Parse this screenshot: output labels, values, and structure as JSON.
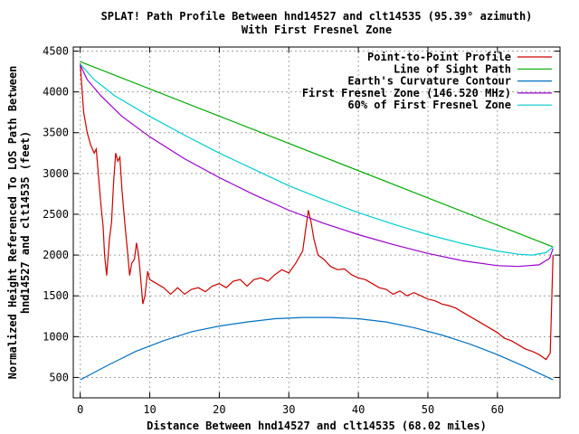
{
  "chart_data": {
    "type": "line",
    "title": "SPLAT! Path Profile Between hnd14527 and clt14535 (95.39° azimuth)",
    "subtitle": "With First Fresnel Zone",
    "xlabel": "Distance Between hnd14527 and clt14535 (68.02 miles)",
    "ylabel_lines": [
      "Normalized Height Referenced To LOS Path Between",
      "hnd14527 and clt14535 (feet)"
    ],
    "xlim": [
      -1,
      69
    ],
    "ylim": [
      250,
      4550
    ],
    "x_ticks": [
      0,
      10,
      20,
      30,
      40,
      50,
      60
    ],
    "y_ticks": [
      500,
      1000,
      1500,
      2000,
      2500,
      3000,
      3500,
      4000,
      4500
    ],
    "x_tick_labels": [
      "0",
      "10",
      "20",
      "30",
      "40",
      "50",
      "60"
    ],
    "y_tick_labels": [
      "500",
      "1000",
      "1500",
      "2000",
      "2500",
      "3000",
      "3500",
      "4000",
      "4500"
    ],
    "grid": true,
    "legend_position": "top-right",
    "series": [
      {
        "name": "Point-to-Point Profile",
        "color": "#cc0000",
        "points": [
          [
            0,
            4350
          ],
          [
            0.2,
            4100
          ],
          [
            0.5,
            3750
          ],
          [
            1,
            3500
          ],
          [
            1.5,
            3350
          ],
          [
            2,
            3250
          ],
          [
            2.3,
            3300
          ],
          [
            2.7,
            2900
          ],
          [
            3,
            2600
          ],
          [
            3.3,
            2350
          ],
          [
            3.5,
            2000
          ],
          [
            3.8,
            1750
          ],
          [
            4.2,
            2200
          ],
          [
            4.5,
            2400
          ],
          [
            4.8,
            2900
          ],
          [
            5.1,
            3250
          ],
          [
            5.4,
            3150
          ],
          [
            5.7,
            3200
          ],
          [
            6,
            2800
          ],
          [
            6.4,
            2400
          ],
          [
            6.8,
            2050
          ],
          [
            7.1,
            1750
          ],
          [
            7.4,
            1900
          ],
          [
            7.8,
            1950
          ],
          [
            8.1,
            2150
          ],
          [
            8.4,
            2000
          ],
          [
            8.7,
            1700
          ],
          [
            9,
            1400
          ],
          [
            9.3,
            1500
          ],
          [
            9.7,
            1800
          ],
          [
            10,
            1700
          ],
          [
            11,
            1650
          ],
          [
            12,
            1600
          ],
          [
            13,
            1520
          ],
          [
            14,
            1600
          ],
          [
            15,
            1520
          ],
          [
            16,
            1580
          ],
          [
            17,
            1600
          ],
          [
            18,
            1550
          ],
          [
            19,
            1620
          ],
          [
            20,
            1650
          ],
          [
            21,
            1600
          ],
          [
            22,
            1680
          ],
          [
            23,
            1700
          ],
          [
            24,
            1620
          ],
          [
            25,
            1700
          ],
          [
            26,
            1720
          ],
          [
            27,
            1680
          ],
          [
            28,
            1760
          ],
          [
            29,
            1820
          ],
          [
            30,
            1780
          ],
          [
            31,
            1900
          ],
          [
            32,
            2050
          ],
          [
            32.8,
            2550
          ],
          [
            33.2,
            2400
          ],
          [
            33.6,
            2200
          ],
          [
            34.2,
            2000
          ],
          [
            35,
            1950
          ],
          [
            36,
            1860
          ],
          [
            37,
            1820
          ],
          [
            38,
            1830
          ],
          [
            39,
            1760
          ],
          [
            40,
            1720
          ],
          [
            41,
            1700
          ],
          [
            42,
            1650
          ],
          [
            43,
            1600
          ],
          [
            44,
            1580
          ],
          [
            45,
            1520
          ],
          [
            46,
            1560
          ],
          [
            47,
            1500
          ],
          [
            48,
            1540
          ],
          [
            49,
            1500
          ],
          [
            50,
            1460
          ],
          [
            51,
            1440
          ],
          [
            52,
            1400
          ],
          [
            53,
            1380
          ],
          [
            54,
            1350
          ],
          [
            55,
            1300
          ],
          [
            56,
            1250
          ],
          [
            57,
            1200
          ],
          [
            58,
            1150
          ],
          [
            59,
            1100
          ],
          [
            60,
            1050
          ],
          [
            61,
            980
          ],
          [
            62,
            950
          ],
          [
            63,
            900
          ],
          [
            64,
            850
          ],
          [
            65,
            820
          ],
          [
            66,
            780
          ],
          [
            67,
            720
          ],
          [
            67.6,
            800
          ],
          [
            68,
            2000
          ]
        ]
      },
      {
        "name": "Line of Sight Path",
        "color": "#00aa00",
        "points": [
          [
            0,
            4370
          ],
          [
            68,
            2100
          ]
        ]
      },
      {
        "name": "Earth's Curvature Contour",
        "color": "#0070c0",
        "points": [
          [
            0,
            470
          ],
          [
            4,
            650
          ],
          [
            8,
            820
          ],
          [
            12,
            950
          ],
          [
            16,
            1060
          ],
          [
            20,
            1130
          ],
          [
            24,
            1180
          ],
          [
            28,
            1220
          ],
          [
            32,
            1235
          ],
          [
            36,
            1235
          ],
          [
            40,
            1220
          ],
          [
            44,
            1180
          ],
          [
            48,
            1110
          ],
          [
            52,
            1020
          ],
          [
            56,
            910
          ],
          [
            60,
            780
          ],
          [
            64,
            630
          ],
          [
            68,
            470
          ]
        ]
      },
      {
        "name": "First Fresnel Zone (146.520 MHz)",
        "color": "#9900cc",
        "points": [
          [
            0,
            4330
          ],
          [
            1,
            4150
          ],
          [
            3,
            3950
          ],
          [
            6,
            3700
          ],
          [
            10,
            3450
          ],
          [
            15,
            3180
          ],
          [
            20,
            2950
          ],
          [
            25,
            2740
          ],
          [
            30,
            2550
          ],
          [
            35,
            2390
          ],
          [
            40,
            2250
          ],
          [
            45,
            2130
          ],
          [
            50,
            2020
          ],
          [
            55,
            1930
          ],
          [
            60,
            1870
          ],
          [
            63,
            1860
          ],
          [
            66,
            1880
          ],
          [
            67.5,
            1960
          ],
          [
            68,
            2080
          ]
        ]
      },
      {
        "name": "60% of First Fresnel Zone",
        "color": "#00cccc",
        "points": [
          [
            0,
            4340
          ],
          [
            2,
            4150
          ],
          [
            5,
            3950
          ],
          [
            10,
            3700
          ],
          [
            15,
            3470
          ],
          [
            20,
            3250
          ],
          [
            25,
            3050
          ],
          [
            30,
            2850
          ],
          [
            35,
            2680
          ],
          [
            40,
            2520
          ],
          [
            45,
            2380
          ],
          [
            50,
            2250
          ],
          [
            55,
            2140
          ],
          [
            60,
            2050
          ],
          [
            63,
            2010
          ],
          [
            65,
            2000
          ],
          [
            67,
            2030
          ],
          [
            68,
            2100
          ]
        ]
      }
    ]
  }
}
